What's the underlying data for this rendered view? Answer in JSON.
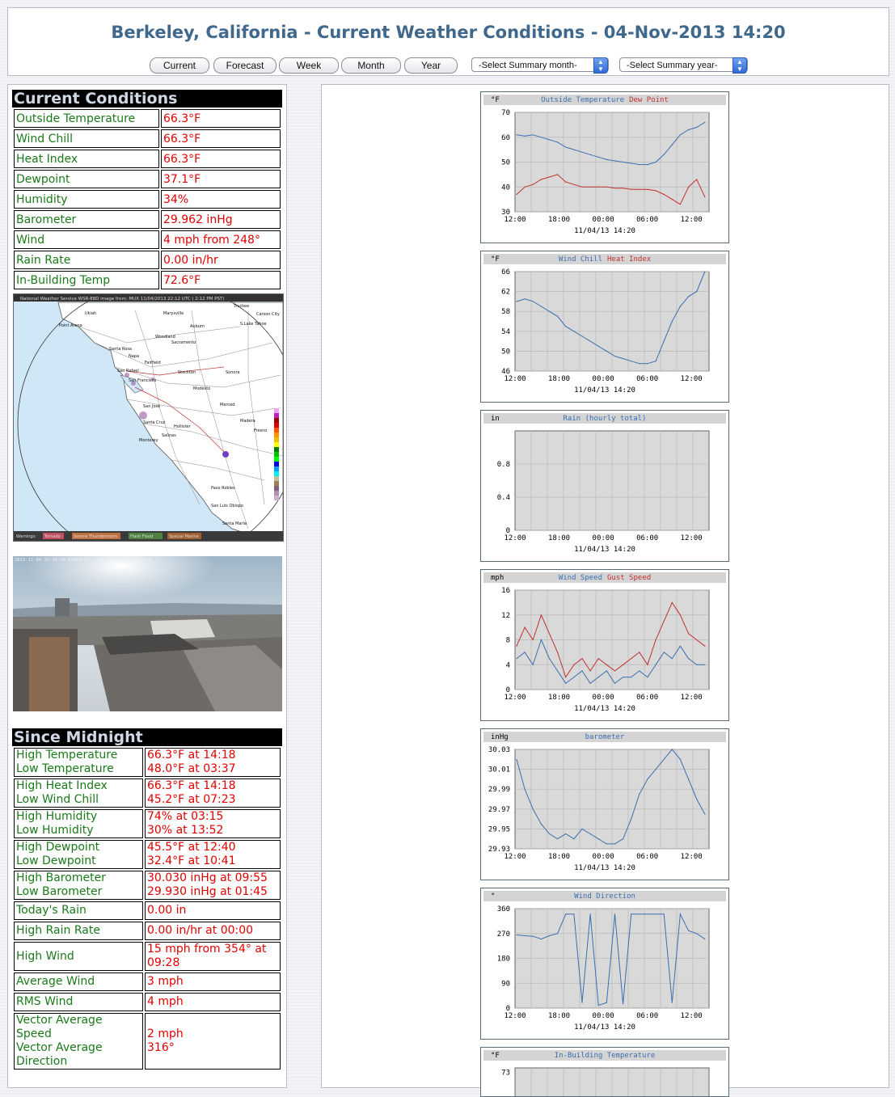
{
  "header": {
    "title": "Berkeley, California - Current Weather Conditions - 04-Nov-2013 14:20",
    "buttons": [
      "Current",
      "Forecast",
      "Week",
      "Month",
      "Year"
    ],
    "select_month": "-Select Summary month-",
    "select_year": "-Select Summary year-"
  },
  "current": {
    "heading": "Current Conditions",
    "rows": [
      {
        "label": "Outside Temperature",
        "value": "66.3°F"
      },
      {
        "label": "Wind Chill",
        "value": "66.3°F"
      },
      {
        "label": "Heat Index",
        "value": "66.3°F"
      },
      {
        "label": "Dewpoint",
        "value": "37.1°F"
      },
      {
        "label": "Humidity",
        "value": "34%"
      },
      {
        "label": "Barometer",
        "value": "29.962 inHg"
      },
      {
        "label": "Wind",
        "value": "4 mph from 248°"
      },
      {
        "label": "Rain Rate",
        "value": "0.00 in/hr"
      },
      {
        "label": "In-Building Temp",
        "value": "72.6°F"
      }
    ]
  },
  "radar": {
    "caption": "National Weather Service WSR-88D image from: MUX 11/04/2013 22:12 UTC ( 2:12 PM PST)",
    "cities": [
      "Ukiah",
      "Marysville",
      "Truckee",
      "Carson City",
      "Point Arena",
      "Auburn",
      "S.Lake Tahoe",
      "Woodland",
      "Sacramento",
      "Santa Rosa",
      "Napa",
      "Fairfield",
      "San Rafael",
      "Stockton",
      "Sonora",
      "San Francisco",
      "Modesto",
      "Merced",
      "San Jose",
      "Madera",
      "Santa Cruz",
      "Hollister",
      "Fresno",
      "Salinas",
      "Monterey",
      "Paso Robles",
      "San Luis Obispo",
      "Santa Maria"
    ],
    "legend": [
      "Warnings:",
      "Tornado",
      "Severe Thunderstorm",
      "Flash Flood",
      "Special Marine"
    ]
  },
  "webcam": {
    "caption": "2013-11-04 15:20:00 BERKELEY - FACING SAN FRANCISCO"
  },
  "midnight": {
    "heading": "Since Midnight",
    "rows": [
      {
        "label": "High Temperature\nLow Temperature",
        "value": "66.3°F at 14:18\n48.0°F at 03:37"
      },
      {
        "label": "High Heat Index\nLow Wind Chill",
        "value": "66.3°F at 14:18\n45.2°F at 07:23"
      },
      {
        "label": "High Humidity\nLow Humidity",
        "value": "74% at 03:15\n30% at 13:52"
      },
      {
        "label": "High Dewpoint\nLow Dewpoint",
        "value": "45.5°F at 12:40\n32.4°F at 10:41"
      },
      {
        "label": "High Barometer\nLow Barometer",
        "value": "30.030 inHg at 09:55\n29.930 inHg at 01:45"
      },
      {
        "label": "Today's Rain",
        "value": "0.00 in"
      },
      {
        "label": "High Rain Rate",
        "value": "0.00 in/hr at 00:00"
      },
      {
        "label": "High Wind",
        "value": "15 mph from 354° at\n09:28"
      },
      {
        "label": "Average Wind",
        "value": "3 mph"
      },
      {
        "label": "RMS Wind",
        "value": "4 mph"
      },
      {
        "label": "Vector Average Speed\nVector Average\nDirection",
        "value": "2 mph\n316°"
      }
    ]
  },
  "chart_data": [
    {
      "type": "line",
      "unit": "°F",
      "title_parts": [
        {
          "text": "Outside Temperature",
          "color": "#3a6fb0"
        },
        {
          "text": "Dew Point",
          "color": "#c03030"
        }
      ],
      "x_ticks": [
        "12:00",
        "18:00",
        "00:00",
        "06:00",
        "12:00"
      ],
      "footer": "11/04/13 14:20",
      "ylim": [
        30,
        70
      ],
      "y_ticks": [
        30,
        40,
        50,
        60,
        70
      ],
      "series": [
        {
          "color": "#3a6fb0",
          "values": [
            61,
            60.5,
            61,
            60,
            59,
            58,
            56,
            55,
            54,
            53,
            52,
            51,
            50.5,
            50,
            49.5,
            49,
            49,
            50,
            53,
            57,
            61,
            63,
            64,
            66
          ]
        },
        {
          "color": "#c03030",
          "values": [
            37,
            40,
            41,
            43,
            44,
            45,
            42,
            41,
            40,
            40,
            40,
            40,
            39.5,
            39.5,
            39,
            39,
            39,
            38.5,
            37,
            35,
            33,
            40,
            43,
            36
          ]
        }
      ]
    },
    {
      "type": "line",
      "unit": "°F",
      "title_parts": [
        {
          "text": "Wind Chill",
          "color": "#3a6fb0"
        },
        {
          "text": "Heat Index",
          "color": "#c03030"
        }
      ],
      "x_ticks": [
        "12:00",
        "18:00",
        "00:00",
        "06:00",
        "12:00"
      ],
      "footer": "11/04/13 14:20",
      "ylim": [
        46,
        66
      ],
      "y_ticks": [
        46,
        50,
        54,
        58,
        62,
        66
      ],
      "series": [
        {
          "color": "#3a6fb0",
          "values": [
            60,
            60.5,
            60,
            59,
            58,
            57,
            55,
            54,
            53,
            52,
            51,
            50,
            49,
            48.5,
            48,
            47.5,
            47.5,
            48,
            52,
            56,
            59,
            61,
            62,
            66
          ]
        }
      ]
    },
    {
      "type": "line",
      "unit": "in",
      "title_parts": [
        {
          "text": "Rain (hourly total)",
          "color": "#3a6fb0"
        }
      ],
      "x_ticks": [
        "12:00",
        "18:00",
        "00:00",
        "06:00",
        "12:00"
      ],
      "footer": "11/04/13 14:20",
      "ylim": [
        0,
        1.2
      ],
      "y_ticks": [
        0.0,
        0.4,
        0.8
      ],
      "series": []
    },
    {
      "type": "line",
      "unit": "mph",
      "title_parts": [
        {
          "text": "Wind Speed",
          "color": "#3a6fb0"
        },
        {
          "text": "Gust Speed",
          "color": "#c03030"
        }
      ],
      "x_ticks": [
        "12:00",
        "18:00",
        "00:00",
        "06:00",
        "12:00"
      ],
      "footer": "11/04/13 14:20",
      "ylim": [
        0,
        16
      ],
      "y_ticks": [
        0,
        4,
        8,
        12,
        16
      ],
      "series": [
        {
          "color": "#3a6fb0",
          "values": [
            5,
            6,
            4,
            8,
            5,
            3,
            1,
            2,
            3,
            1,
            2,
            3,
            1,
            2,
            2,
            3,
            2,
            4,
            6,
            5,
            7,
            5,
            4,
            4
          ]
        },
        {
          "color": "#c03030",
          "values": [
            7,
            10,
            8,
            12,
            9,
            6,
            2,
            4,
            5,
            3,
            5,
            4,
            3,
            4,
            5,
            6,
            4,
            8,
            11,
            14,
            12,
            9,
            8,
            7
          ]
        }
      ]
    },
    {
      "type": "line",
      "unit": "inHg",
      "title_parts": [
        {
          "text": "barometer",
          "color": "#3a6fb0"
        }
      ],
      "x_ticks": [
        "12:00",
        "18:00",
        "00:00",
        "06:00",
        "12:00"
      ],
      "footer": "11/04/13 14:20",
      "ylim": [
        29.93,
        30.03
      ],
      "y_ticks": [
        29.93,
        29.95,
        29.97,
        29.99,
        30.01,
        30.03
      ],
      "series": [
        {
          "color": "#3a6fb0",
          "values": [
            30.02,
            29.99,
            29.97,
            29.955,
            29.945,
            29.94,
            29.945,
            29.94,
            29.95,
            29.945,
            29.94,
            29.935,
            29.935,
            29.94,
            29.96,
            29.985,
            30.0,
            30.01,
            30.02,
            30.03,
            30.02,
            30.0,
            29.98,
            29.965
          ]
        }
      ]
    },
    {
      "type": "line",
      "unit": "°",
      "title_parts": [
        {
          "text": "Wind Direction",
          "color": "#3a6fb0"
        }
      ],
      "x_ticks": [
        "12:00",
        "18:00",
        "00:00",
        "06:00",
        "12:00"
      ],
      "footer": "11/04/13 14:20",
      "ylim": [
        0,
        360
      ],
      "y_ticks": [
        0,
        90,
        180,
        270,
        360
      ],
      "series": [
        {
          "color": "#3a6fb0",
          "values": [
            265,
            262,
            260,
            250,
            262,
            270,
            340,
            340,
            20,
            340,
            10,
            20,
            340,
            15,
            340,
            340,
            340,
            340,
            340,
            20,
            340,
            280,
            270,
            250
          ]
        }
      ]
    },
    {
      "type": "line",
      "unit": "°F",
      "title_parts": [
        {
          "text": "In-Building Temperature",
          "color": "#3a6fb0"
        }
      ],
      "x_ticks": [],
      "footer": "",
      "ylim": [
        60,
        75
      ],
      "y_ticks": [
        73
      ],
      "series": []
    }
  ]
}
